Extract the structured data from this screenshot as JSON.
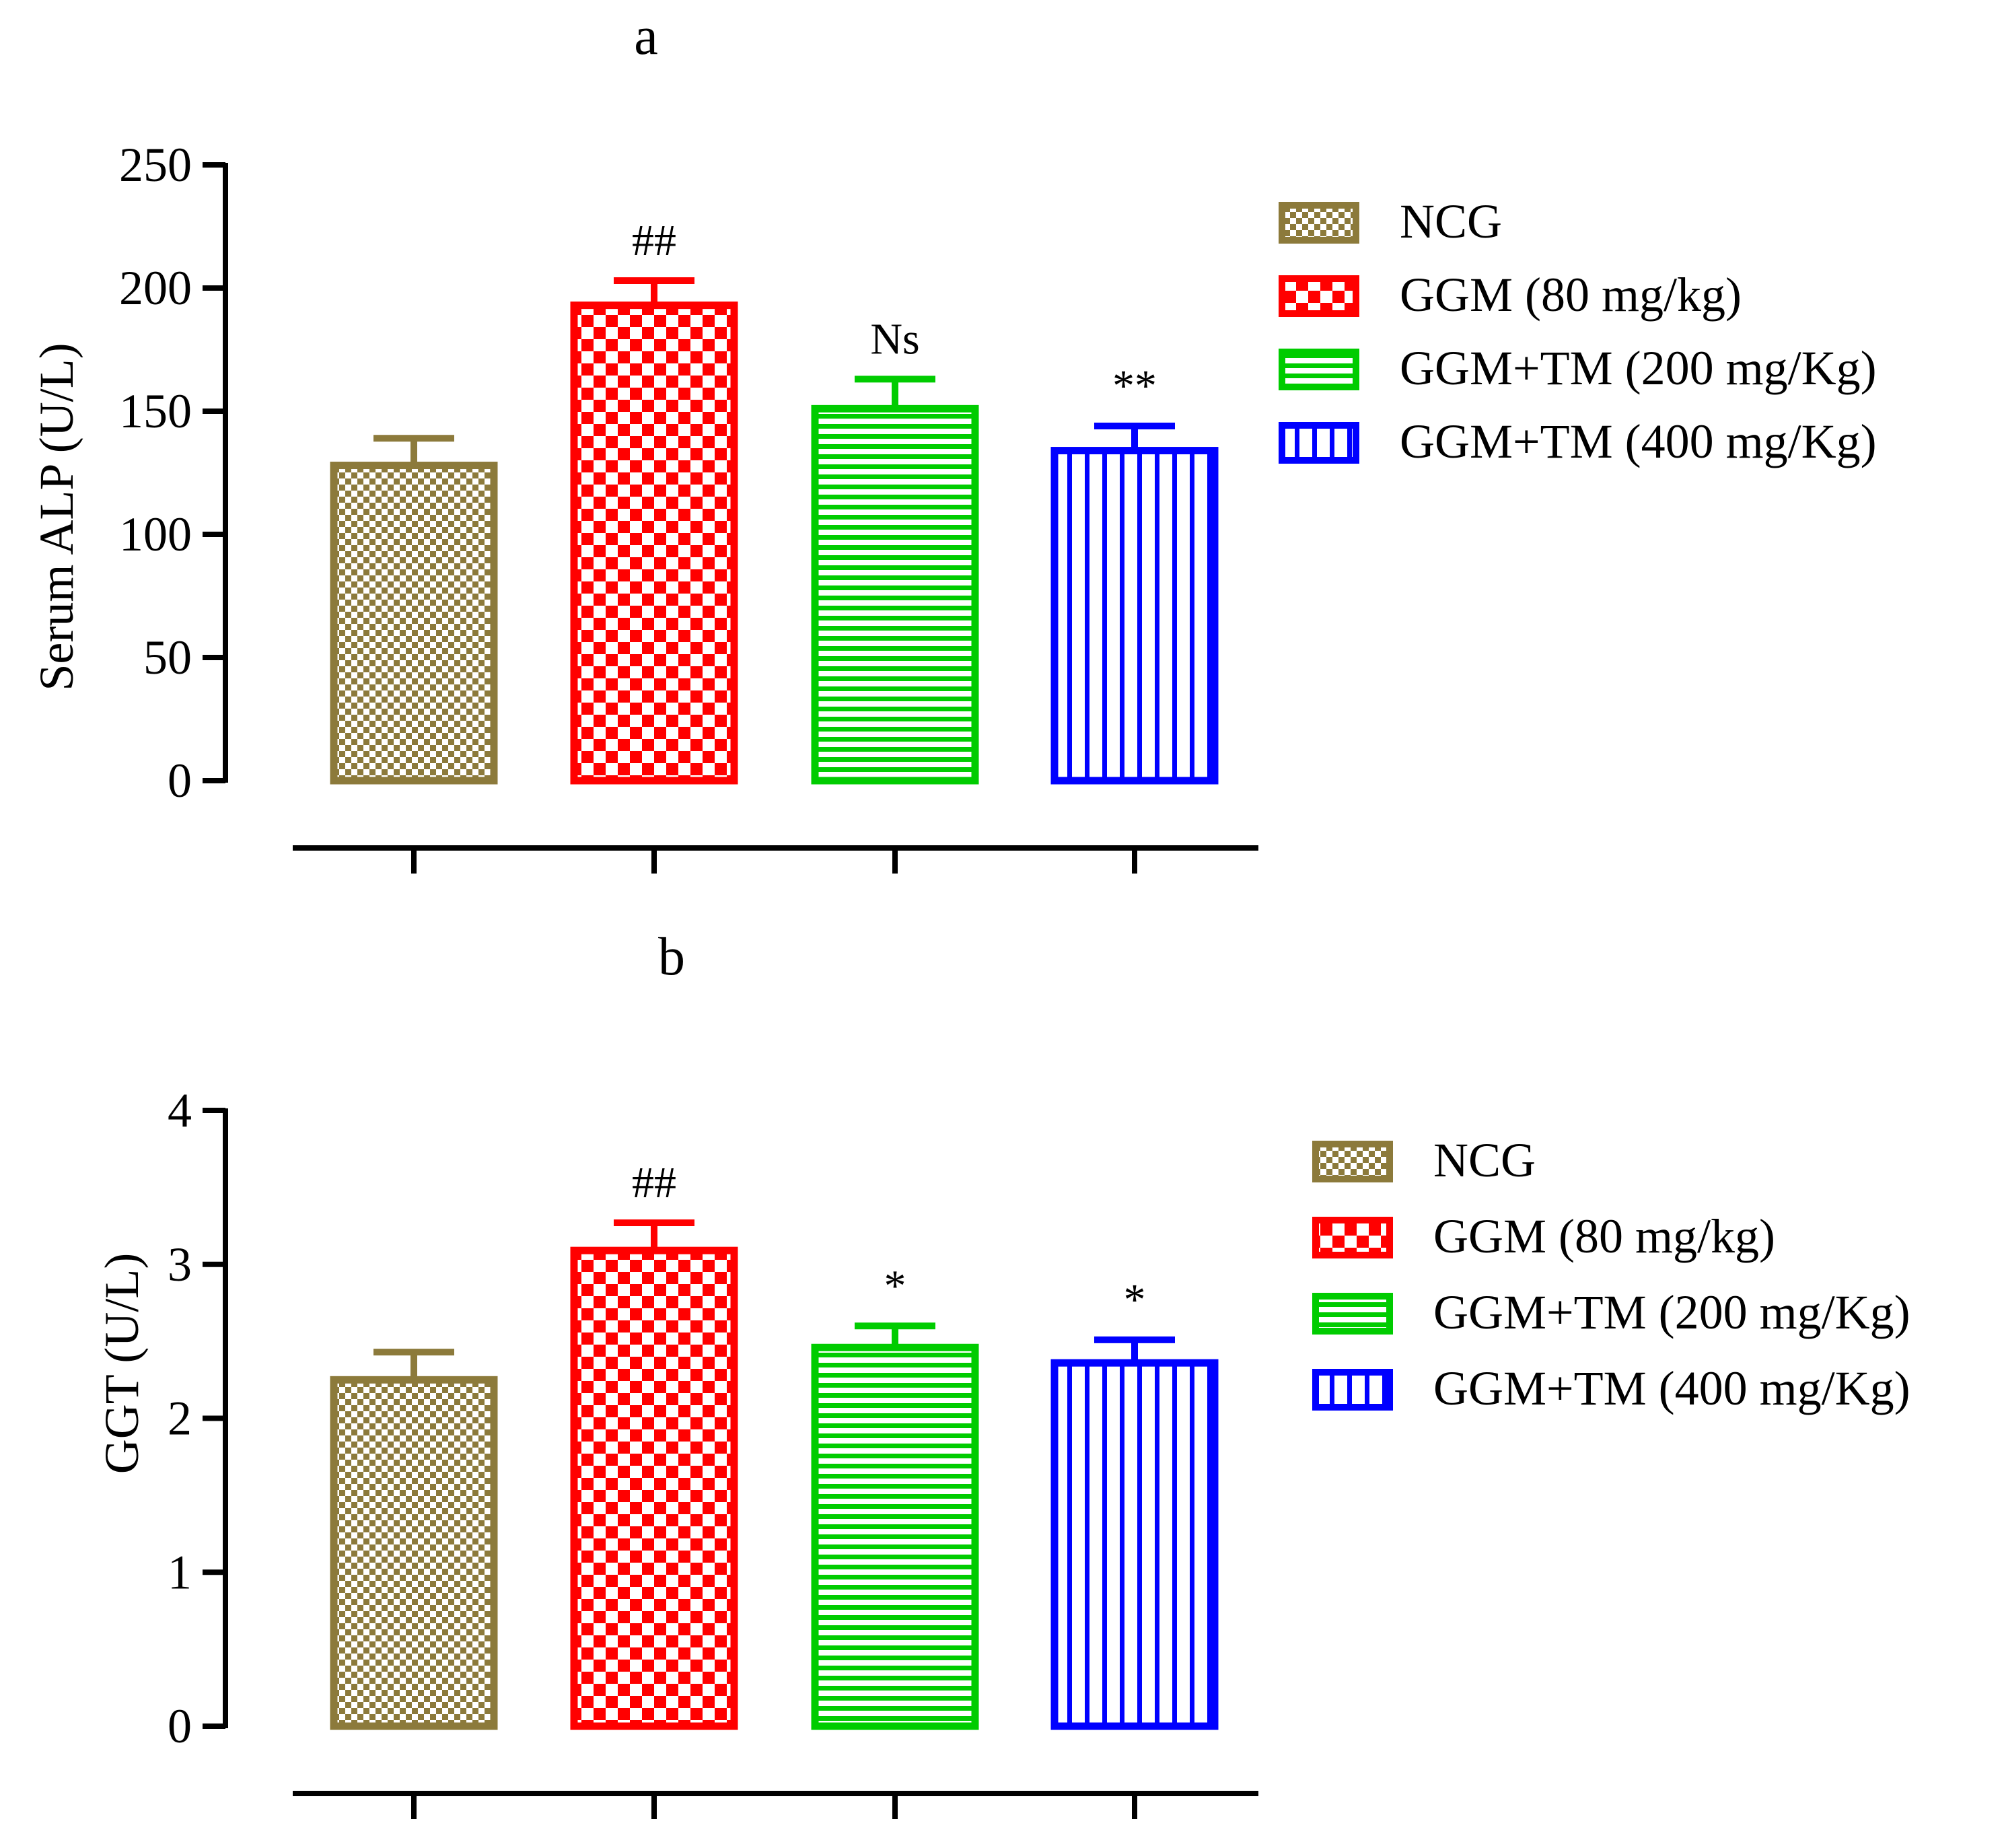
{
  "chart_data": [
    {
      "type": "bar",
      "panel_label": "a",
      "ylabel": "Serum ALP (U/L)",
      "xlabel": "",
      "ylim": [
        0,
        250
      ],
      "yticks": [
        0,
        50,
        100,
        150,
        200,
        250
      ],
      "legend_position": "right",
      "series": [
        {
          "name": "NCG",
          "value": 128,
          "error": 11,
          "annotation": "",
          "color": "#8c7a3b",
          "pattern": "checker-fine"
        },
        {
          "name": "GGM (80 mg/kg)",
          "value": 193,
          "error": 10,
          "annotation": "##",
          "color": "#ff0000",
          "pattern": "checker-coarse"
        },
        {
          "name": "GGM+TM (200 mg/Kg)",
          "value": 151,
          "error": 12,
          "annotation": "Ns",
          "color": "#00cc00",
          "pattern": "horizontal-lines"
        },
        {
          "name": "GGM+TM (400 mg/Kg)",
          "value": 134,
          "error": 10,
          "annotation": "**",
          "color": "#0000ff",
          "pattern": "vertical-lines"
        }
      ]
    },
    {
      "type": "bar",
      "panel_label": "b",
      "ylabel": "GGT (U/L)",
      "xlabel": "",
      "ylim": [
        0,
        4
      ],
      "yticks": [
        0,
        1,
        2,
        3,
        4
      ],
      "legend_position": "right",
      "series": [
        {
          "name": "NCG",
          "value": 2.25,
          "error": 0.18,
          "annotation": "",
          "color": "#8c7a3b",
          "pattern": "checker-fine"
        },
        {
          "name": "GGM (80 mg/kg)",
          "value": 3.09,
          "error": 0.18,
          "annotation": "##",
          "color": "#ff0000",
          "pattern": "checker-coarse"
        },
        {
          "name": "GGM+TM (200 mg/Kg)",
          "value": 2.46,
          "error": 0.14,
          "annotation": "*",
          "color": "#00cc00",
          "pattern": "horizontal-lines"
        },
        {
          "name": "GGM+TM (400 mg/Kg)",
          "value": 2.36,
          "error": 0.15,
          "annotation": "*",
          "color": "#0000ff",
          "pattern": "vertical-lines"
        }
      ]
    }
  ]
}
